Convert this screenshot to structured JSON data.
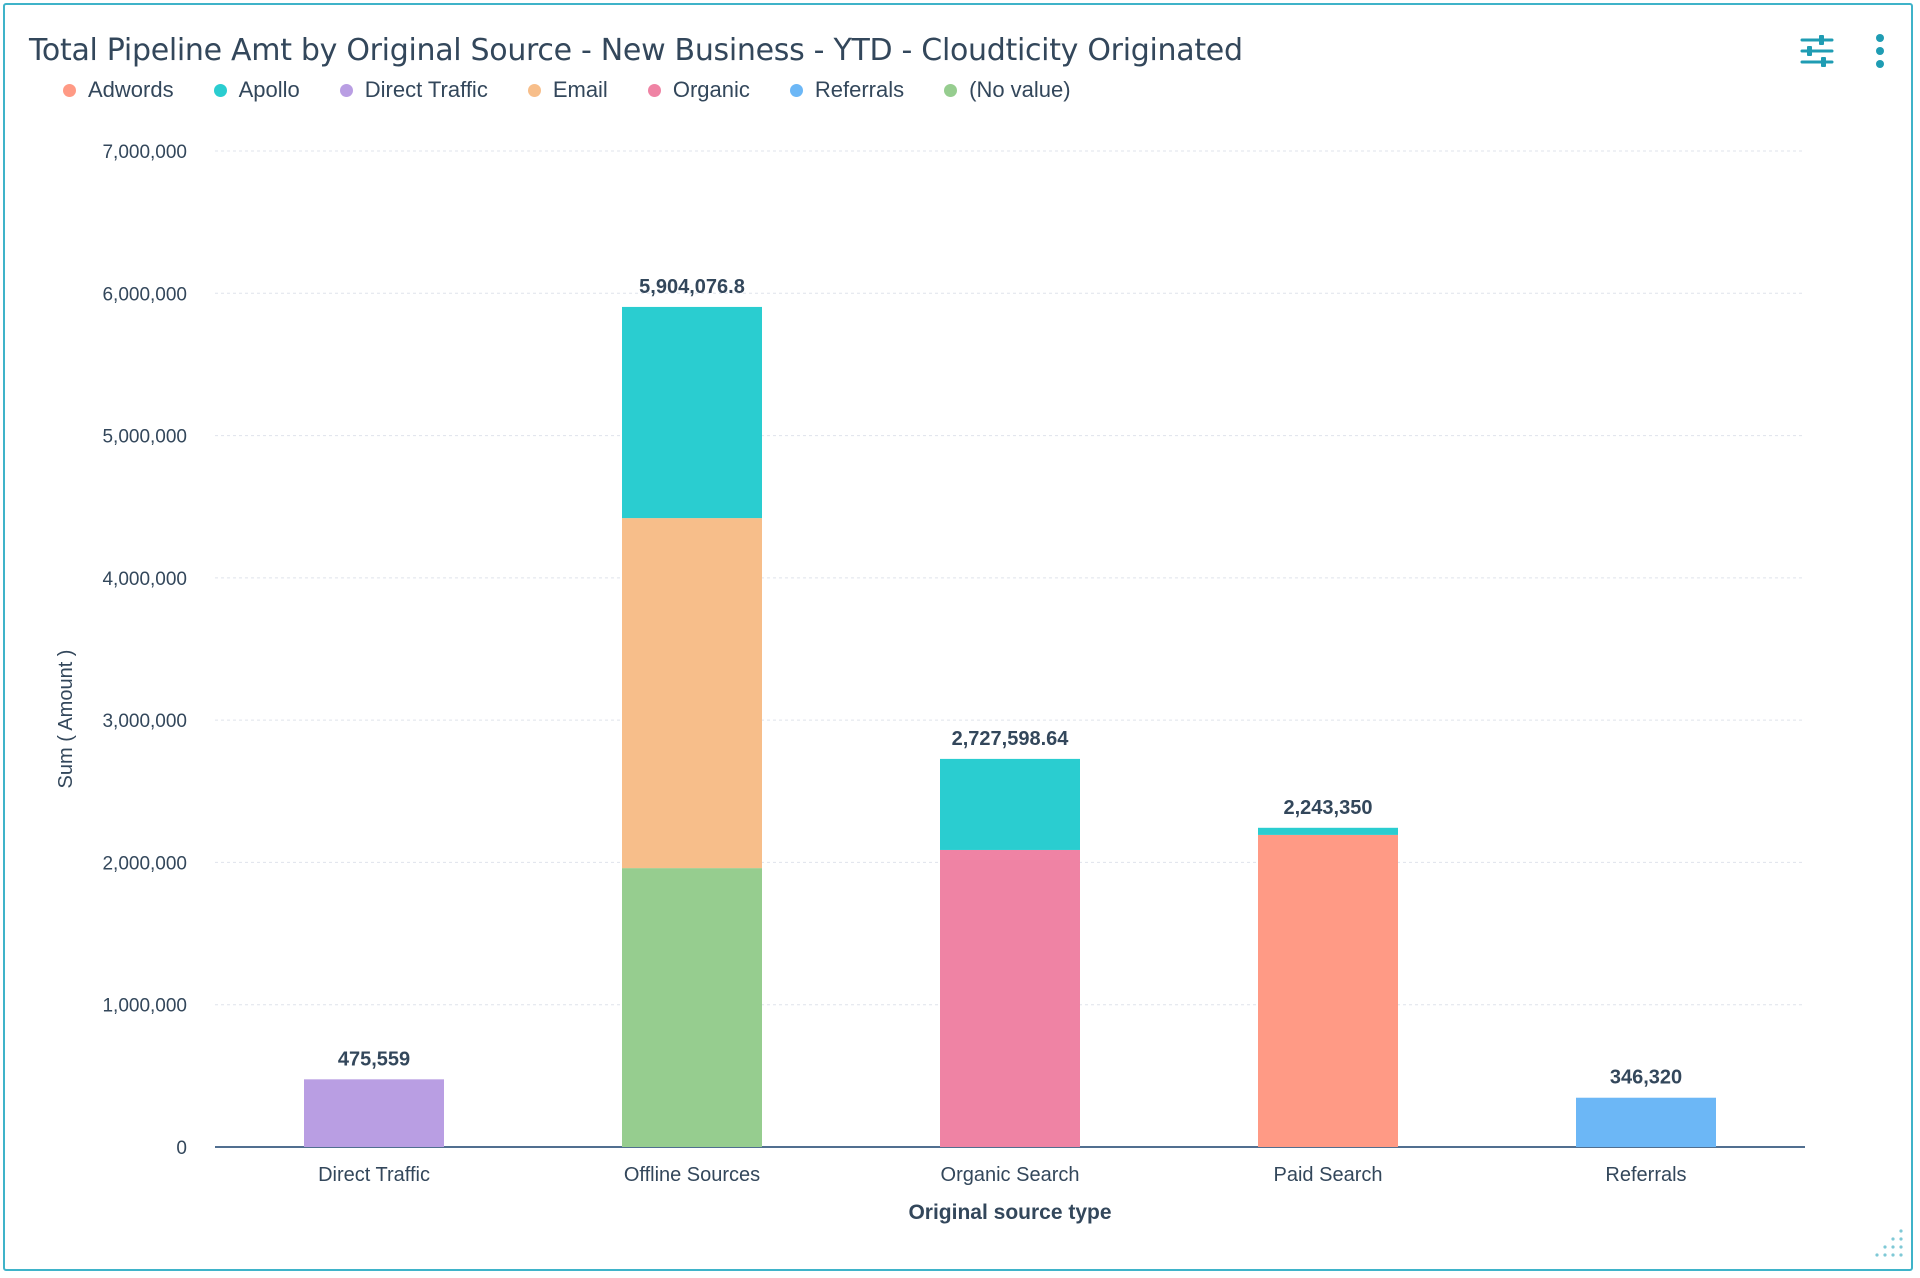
{
  "colors": {
    "accent": "#3fb3c9",
    "text": "#33475b",
    "Adwords": "#ff9a85",
    "Apollo": "#2acdd0",
    "Direct Traffic": "#b99ee3",
    "Email": "#f7be8a",
    "Organic": "#ef83a4",
    "Referrals": "#6cb7f6",
    "(No value)": "#96cd8f"
  },
  "toolbar": {
    "filter_icon": "sliders-icon",
    "menu_icon": "vertical-ellipsis-icon"
  },
  "chart_data": {
    "type": "bar",
    "stacked": true,
    "title": "Total Pipeline Amt by Original Source - New Business - YTD - Cloudticity Originated",
    "xlabel": "Original source type",
    "ylabel": "Sum ( Amount )",
    "ylim": [
      0,
      7000000
    ],
    "yticks": [
      0,
      1000000,
      2000000,
      3000000,
      4000000,
      5000000,
      6000000,
      7000000
    ],
    "ytick_labels": [
      "0",
      "1,000,000",
      "2,000,000",
      "3,000,000",
      "4,000,000",
      "5,000,000",
      "6,000,000",
      "7,000,000"
    ],
    "grid": true,
    "legend_position": "top-left",
    "legend": [
      "Adwords",
      "Apollo",
      "Direct Traffic",
      "Email",
      "Organic",
      "Referrals",
      "(No value)"
    ],
    "categories": [
      "Direct Traffic",
      "Offline Sources",
      "Organic Search",
      "Paid Search",
      "Referrals"
    ],
    "series": [
      {
        "name": "Adwords",
        "values": [
          0,
          0,
          0,
          2193350,
          0
        ]
      },
      {
        "name": "Apollo",
        "values": [
          0,
          1484076.8,
          640000,
          50000,
          0
        ]
      },
      {
        "name": "Direct Traffic",
        "values": [
          475559,
          0,
          0,
          0,
          0
        ]
      },
      {
        "name": "Email",
        "values": [
          0,
          2460000,
          0,
          0,
          0
        ]
      },
      {
        "name": "Organic",
        "values": [
          0,
          0,
          2087598.64,
          0,
          0
        ]
      },
      {
        "name": "Referrals",
        "values": [
          0,
          0,
          0,
          0,
          346320
        ]
      },
      {
        "name": "(No value)",
        "values": [
          0,
          1960000,
          0,
          0,
          0
        ]
      }
    ],
    "stack_order": [
      "(No value)",
      "Direct Traffic",
      "Organic",
      "Email",
      "Adwords",
      "Apollo",
      "Referrals"
    ],
    "totals": [
      475559,
      5904076.8,
      2727598.64,
      2243350,
      346320
    ],
    "total_labels": [
      "475,559",
      "5,904,076.8",
      "2,727,598.64",
      "2,243,350",
      "346,320"
    ]
  }
}
